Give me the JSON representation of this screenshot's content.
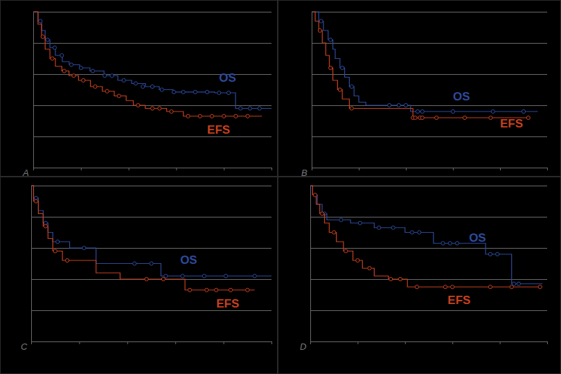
{
  "chart_data": [
    {
      "type": "line",
      "title": "A",
      "xlim": [
        0,
        10
      ],
      "xticks": [
        0,
        2,
        4,
        6,
        8,
        10
      ],
      "ylim": [
        0,
        1
      ],
      "yticks": [
        0,
        0.2,
        0.4,
        0.6,
        0.8,
        1
      ],
      "grid": true,
      "tick_labels": false,
      "series": [
        {
          "name": "OS",
          "color": "#2d4a9c",
          "line_style": "step",
          "marker": "circle",
          "x": [
            0,
            0.2,
            0.35,
            0.5,
            0.7,
            0.93,
            1.22,
            1.51,
            1.95,
            2.38,
            2.97,
            3.55,
            4.13,
            4.71,
            5.29,
            5.87,
            7.62,
            8.49,
            10
          ],
          "values": [
            1,
            0.94,
            0.88,
            0.82,
            0.77,
            0.72,
            0.68,
            0.66,
            0.64,
            0.62,
            0.59,
            0.56,
            0.54,
            0.52,
            0.5,
            0.485,
            0.48,
            0.38,
            0.38
          ],
          "censor_x": [
            0.3,
            0.6,
            0.9,
            1.2,
            1.6,
            2.0,
            2.5,
            3.0,
            3.3,
            3.8,
            4.3,
            4.6,
            5.0,
            5.4,
            5.9,
            6.3,
            6.8,
            7.3,
            7.8,
            8.2,
            8.7,
            9.1,
            9.5
          ],
          "censor_values": [
            0.94,
            0.82,
            0.77,
            0.72,
            0.66,
            0.64,
            0.62,
            0.59,
            0.59,
            0.56,
            0.54,
            0.52,
            0.52,
            0.5,
            0.485,
            0.485,
            0.485,
            0.485,
            0.48,
            0.48,
            0.38,
            0.38,
            0.38
          ]
        },
        {
          "name": "EFS",
          "color": "#c8401e",
          "line_style": "step",
          "marker": "circle",
          "x": [
            0,
            0.2,
            0.35,
            0.5,
            0.7,
            0.93,
            1.2,
            1.5,
            1.9,
            2.4,
            2.9,
            3.4,
            3.9,
            4.2,
            4.7,
            5.6,
            6.3,
            9.6
          ],
          "values": [
            1,
            0.92,
            0.84,
            0.76,
            0.7,
            0.65,
            0.62,
            0.59,
            0.56,
            0.52,
            0.49,
            0.46,
            0.43,
            0.4,
            0.38,
            0.36,
            0.33,
            0.33
          ],
          "censor_x": [
            0.4,
            0.8,
            1.3,
            1.7,
            2.1,
            2.6,
            3.1,
            3.6,
            4.4,
            5.0,
            5.3,
            5.8,
            6.5,
            7.0,
            7.5,
            8.0,
            8.5,
            9.0
          ],
          "censor_values": [
            0.84,
            0.7,
            0.62,
            0.59,
            0.56,
            0.52,
            0.49,
            0.46,
            0.4,
            0.38,
            0.38,
            0.36,
            0.33,
            0.33,
            0.33,
            0.33,
            0.33,
            0.33
          ]
        }
      ]
    },
    {
      "type": "line",
      "title": "B",
      "xlim": [
        0,
        10
      ],
      "xticks": [
        0,
        2,
        4,
        6,
        8,
        10
      ],
      "ylim": [
        0,
        1
      ],
      "yticks": [
        0,
        0.2,
        0.4,
        0.6,
        0.8,
        1
      ],
      "grid": true,
      "tick_labels": false,
      "series": [
        {
          "name": "OS",
          "color": "#2d4a9c",
          "line_style": "step",
          "marker": "circle",
          "x": [
            0,
            0.3,
            0.5,
            0.7,
            0.9,
            1.0,
            1.2,
            1.4,
            1.6,
            1.8,
            2.0,
            2.3,
            4.2,
            9.6
          ],
          "values": [
            1,
            0.94,
            0.88,
            0.82,
            0.76,
            0.7,
            0.64,
            0.58,
            0.52,
            0.46,
            0.42,
            0.4,
            0.36,
            0.36
          ],
          "censor_x": [
            0.4,
            0.8,
            1.3,
            1.7,
            3.3,
            3.7,
            4.0,
            4.5,
            4.7,
            6.0,
            7.7,
            9.0
          ],
          "censor_values": [
            0.94,
            0.82,
            0.64,
            0.52,
            0.4,
            0.4,
            0.4,
            0.36,
            0.36,
            0.36,
            0.36,
            0.36
          ]
        },
        {
          "name": "EFS",
          "color": "#c8401e",
          "line_style": "step",
          "marker": "circle",
          "x": [
            0,
            0.15,
            0.3,
            0.45,
            0.6,
            0.75,
            0.9,
            1.1,
            1.3,
            1.6,
            4.3,
            9.2
          ],
          "values": [
            1,
            0.94,
            0.88,
            0.8,
            0.72,
            0.64,
            0.56,
            0.5,
            0.44,
            0.38,
            0.32,
            0.32
          ],
          "censor_x": [
            0.35,
            0.8,
            1.2,
            1.7,
            4.3,
            4.4,
            4.6,
            4.7,
            5.3,
            6.5,
            7.6,
            9.2
          ],
          "censor_values": [
            0.88,
            0.64,
            0.5,
            0.38,
            0.32,
            0.32,
            0.32,
            0.32,
            0.32,
            0.32,
            0.32,
            0.32
          ]
        }
      ]
    },
    {
      "type": "line",
      "title": "C",
      "xlim": [
        0,
        10
      ],
      "xticks": [
        0,
        2,
        4,
        6,
        8,
        10
      ],
      "ylim": [
        0,
        1
      ],
      "yticks": [
        0,
        0.2,
        0.4,
        0.6,
        0.8,
        1
      ],
      "grid": true,
      "tick_labels": false,
      "series": [
        {
          "name": "OS",
          "color": "#2d4a9c",
          "line_style": "step",
          "marker": "circle",
          "x": [
            0,
            0.1,
            0.3,
            0.5,
            0.7,
            0.9,
            1.6,
            2.7,
            5.4,
            10
          ],
          "values": [
            1,
            0.92,
            0.84,
            0.76,
            0.7,
            0.64,
            0.6,
            0.5,
            0.42,
            0.42
          ],
          "censor_x": [
            0.2,
            0.6,
            1.1,
            2.2,
            4.3,
            5.0,
            5.6,
            6.3,
            7.2,
            8.1,
            9.3
          ],
          "censor_values": [
            0.92,
            0.76,
            0.64,
            0.6,
            0.5,
            0.5,
            0.42,
            0.42,
            0.42,
            0.42,
            0.42
          ]
        },
        {
          "name": "EFS",
          "color": "#c8401e",
          "line_style": "step",
          "marker": "circle",
          "x": [
            0,
            0.1,
            0.3,
            0.5,
            0.7,
            0.9,
            1.3,
            2.7,
            3.7,
            6.4,
            9.3
          ],
          "values": [
            1,
            0.9,
            0.82,
            0.74,
            0.66,
            0.58,
            0.52,
            0.44,
            0.4,
            0.33,
            0.33
          ],
          "censor_x": [
            0.2,
            0.6,
            1.0,
            1.5,
            4.8,
            5.5,
            6.6,
            7.3,
            7.7,
            8.3,
            9.0
          ],
          "censor_values": [
            0.9,
            0.74,
            0.58,
            0.52,
            0.4,
            0.4,
            0.33,
            0.33,
            0.33,
            0.33,
            0.33
          ]
        }
      ]
    },
    {
      "type": "line",
      "title": "D",
      "xlim": [
        0,
        10
      ],
      "xticks": [
        0,
        2,
        4,
        6,
        8,
        10
      ],
      "ylim": [
        0,
        1
      ],
      "yticks": [
        0,
        0.2,
        0.4,
        0.6,
        0.8,
        1
      ],
      "grid": true,
      "tick_labels": false,
      "series": [
        {
          "name": "OS",
          "color": "#2d4a9c",
          "line_style": "step",
          "marker": "circle",
          "x": [
            0,
            0.1,
            0.3,
            0.5,
            0.7,
            1.7,
            2.7,
            4.0,
            5.2,
            7.4,
            8.5,
            9.8
          ],
          "values": [
            1,
            0.94,
            0.88,
            0.82,
            0.78,
            0.76,
            0.73,
            0.7,
            0.63,
            0.56,
            0.37,
            0.37
          ],
          "censor_x": [
            0.6,
            1.3,
            2.1,
            2.9,
            3.5,
            4.3,
            4.6,
            5.6,
            5.9,
            6.2,
            7.6,
            7.9,
            8.6,
            8.8
          ],
          "censor_values": [
            0.82,
            0.78,
            0.76,
            0.73,
            0.73,
            0.7,
            0.7,
            0.63,
            0.63,
            0.63,
            0.56,
            0.56,
            0.37,
            0.37
          ]
        },
        {
          "name": "EFS",
          "color": "#c8401e",
          "line_style": "step",
          "marker": "circle",
          "x": [
            0,
            0.1,
            0.25,
            0.4,
            0.6,
            0.8,
            1.1,
            1.4,
            1.8,
            2.2,
            2.7,
            3.3,
            4.1,
            9.8
          ],
          "values": [
            1,
            0.94,
            0.88,
            0.82,
            0.76,
            0.7,
            0.64,
            0.58,
            0.52,
            0.47,
            0.42,
            0.4,
            0.35,
            0.35
          ],
          "censor_x": [
            0.2,
            0.5,
            1.0,
            1.5,
            2.0,
            2.5,
            3.4,
            3.8,
            4.5,
            5.7,
            6.0,
            7.6,
            8.5,
            9.7
          ],
          "censor_values": [
            0.94,
            0.82,
            0.7,
            0.58,
            0.52,
            0.47,
            0.4,
            0.4,
            0.35,
            0.35,
            0.35,
            0.35,
            0.35,
            0.35
          ]
        }
      ]
    }
  ]
}
